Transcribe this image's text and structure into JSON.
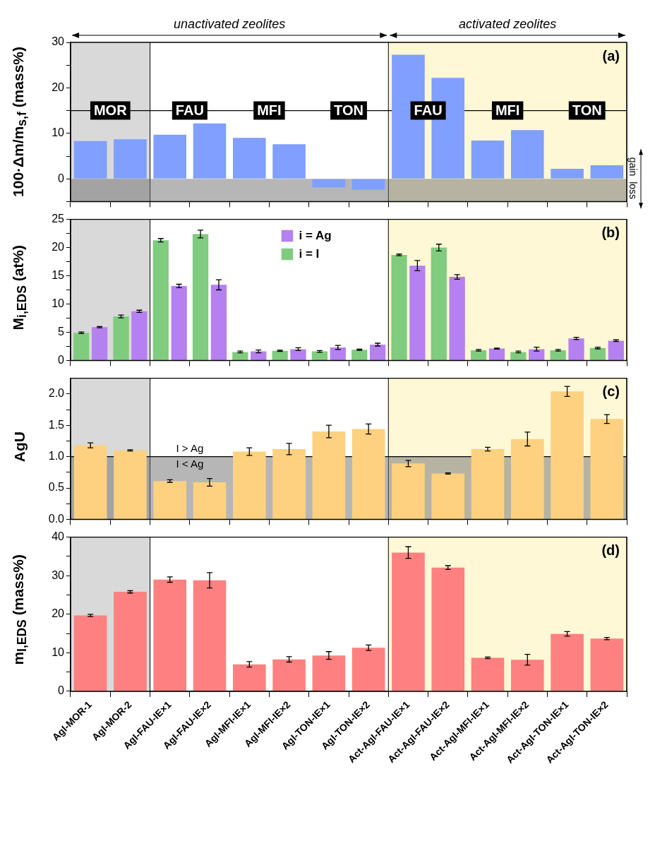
{
  "chart_data": [
    {
      "type": "bar",
      "ylabel": "100·Δm/m$_{s,f}$ (mass%)",
      "categories": [
        "AgI-MOR-1",
        "AgI-MOR-2",
        "AgI-FAU-IE×1",
        "AgI-FAU-IE×2",
        "AgI-MFI-IE×1",
        "AgI-MFI-IE×2",
        "AgI-TON-IE×1",
        "AgI-TON-IE×2",
        "Act-AgI-FAU-IE×1",
        "Act-AgI-FAU-IE×2",
        "Act-AgI-MFI-IE×1",
        "Act-AgI-MFI-IE×2",
        "Act-AgI-TON-IE×1",
        "Act-AgI-TON-IE×2"
      ],
      "values": [
        8.3,
        8.7,
        9.7,
        12.2,
        9.0,
        7.6,
        -1.9,
        -2.4,
        27.3,
        22.2,
        8.4,
        10.7,
        2.2,
        3.0
      ],
      "color": "#809fff",
      "ylim": [
        -5,
        30
      ],
      "yticks": [
        {
          "value": -5,
          "label": null
        },
        0,
        {
          "value": 5,
          "label": null
        },
        10,
        {
          "value": 15,
          "label": null
        },
        20,
        {
          "value": 25,
          "label": null
        },
        30
      ],
      "grid": false,
      "tick_labels": "y",
      "bands": [
        {
          "axis": "x",
          "from": "AgI-MOR-1",
          "to": "AgI-MOR-2",
          "color": "#d9d9d9"
        },
        {
          "axis": "x",
          "from": "Act-AgI-FAU-IE×1",
          "to": "Act-AgI-TON-IE×2",
          "color": "#fff8d6"
        },
        {
          "axis": "y",
          "from": -5,
          "to": 0,
          "color": "#6e6e6e"
        }
      ],
      "ref_lines": [
        {
          "axis": "y",
          "value": 15,
          "color": "#000000"
        }
      ],
      "annotations": [
        "MOR",
        "FAU",
        "MFI",
        "TON",
        "FAU",
        "MFI",
        "TON",
        "unactivated zeolites",
        "activated zeolites",
        "(a)",
        "gain",
        "loss"
      ]
    },
    {
      "type": "bar",
      "ylabel": "M$_{i,EDS}$ (at%)",
      "categories": [
        "AgI-MOR-1",
        "AgI-MOR-2",
        "AgI-FAU-IE×1",
        "AgI-FAU-IE×2",
        "AgI-MFI-IE×1",
        "AgI-MFI-IE×2",
        "AgI-TON-IE×1",
        "AgI-TON-IE×2",
        "Act-AgI-FAU-IE×1",
        "Act-AgI-FAU-IE×2",
        "Act-AgI-MFI-IE×1",
        "Act-AgI-MFI-IE×2",
        "Act-AgI-TON-IE×1",
        "Act-AgI-TON-IE×2"
      ],
      "series": [
        {
          "name": "i = I",
          "color": "#7fcc7f",
          "values": [
            4.9,
            7.8,
            21.3,
            22.4,
            1.5,
            1.7,
            1.6,
            1.9,
            18.7,
            20.0,
            1.8,
            1.5,
            1.8,
            2.2
          ],
          "errors": [
            0.15,
            0.25,
            0.3,
            0.7,
            0.15,
            0.1,
            0.15,
            0.1,
            0.15,
            0.6,
            0.15,
            0.15,
            0.15,
            0.15
          ]
        },
        {
          "name": "i = Ag",
          "color": "#b580f0",
          "values": [
            5.9,
            8.7,
            13.2,
            13.4,
            1.6,
            2.0,
            2.3,
            2.8,
            16.8,
            14.8,
            2.1,
            2.0,
            3.9,
            3.5
          ],
          "errors": [
            0.1,
            0.2,
            0.3,
            0.9,
            0.25,
            0.25,
            0.35,
            0.25,
            0.9,
            0.4,
            0.1,
            0.35,
            0.2,
            0.15
          ]
        }
      ],
      "ylim": [
        0,
        25
      ],
      "yticks": [
        0,
        {
          "value": 2.5,
          "label": null
        },
        5,
        {
          "value": 7.5,
          "label": null
        },
        10,
        {
          "value": 12.5,
          "label": null
        },
        15,
        {
          "value": 17.5,
          "label": null
        },
        20,
        {
          "value": 22.5,
          "label": null
        },
        25
      ],
      "grid": false,
      "tick_labels": "y",
      "legend": "top",
      "bands": [
        {
          "axis": "x",
          "from": "AgI-MOR-1",
          "to": "AgI-MOR-2",
          "color": "#d9d9d9"
        },
        {
          "axis": "x",
          "from": "Act-AgI-FAU-IE×1",
          "to": "Act-AgI-TON-IE×2",
          "color": "#fff8d6"
        }
      ],
      "annotations": [
        "(b)"
      ]
    },
    {
      "type": "bar",
      "ylabel": "AgU",
      "categories": [
        "AgI-MOR-1",
        "AgI-MOR-2",
        "AgI-FAU-IE×1",
        "AgI-FAU-IE×2",
        "AgI-MFI-IE×1",
        "AgI-MFI-IE×2",
        "AgI-TON-IE×1",
        "AgI-TON-IE×2",
        "Act-AgI-FAU-IE×1",
        "Act-AgI-FAU-IE×2",
        "Act-AgI-MFI-IE×1",
        "Act-AgI-MFI-IE×2",
        "Act-AgI-TON-IE×1",
        "Act-AgI-TON-IE×2"
      ],
      "values": [
        1.18,
        1.1,
        0.61,
        0.59,
        1.08,
        1.12,
        1.4,
        1.44,
        0.89,
        0.73,
        1.12,
        1.28,
        2.04,
        1.6
      ],
      "errors": [
        0.04,
        0.01,
        0.02,
        0.06,
        0.06,
        0.09,
        0.1,
        0.08,
        0.05,
        0.01,
        0.03,
        0.11,
        0.08,
        0.07
      ],
      "color": "#fdd17f",
      "ylim": [
        0,
        2.25
      ],
      "yticks": [
        {
          "value": 0,
          "label": "0.0"
        },
        {
          "value": 0.25,
          "label": null
        },
        {
          "value": 0.5,
          "label": "0.5"
        },
        {
          "value": 0.75,
          "label": null
        },
        {
          "value": 1,
          "label": "1.0"
        },
        {
          "value": 1.25,
          "label": null
        },
        {
          "value": 1.5,
          "label": "1.5"
        },
        {
          "value": 1.75,
          "label": null
        },
        {
          "value": 2,
          "label": "2.0"
        }
      ],
      "grid": false,
      "tick_labels": "y",
      "bands": [
        {
          "axis": "x",
          "from": "AgI-MOR-1",
          "to": "AgI-MOR-2",
          "color": "#d9d9d9"
        },
        {
          "axis": "x",
          "from": "Act-AgI-FAU-IE×1",
          "to": "Act-AgI-TON-IE×2",
          "color": "#fff8d6"
        },
        {
          "axis": "y",
          "from": 0,
          "to": 1,
          "color": "#6e6e6e"
        }
      ],
      "ref_lines": [
        {
          "axis": "y",
          "value": 1,
          "color": "#000000"
        }
      ],
      "annotations": [
        "I > Ag",
        "I < Ag",
        "(c)"
      ]
    },
    {
      "type": "bar",
      "ylabel": "m$_{I,EDS}$ (mass%)",
      "categories": [
        "AgI-MOR-1",
        "AgI-MOR-2",
        "AgI-FAU-IE×1",
        "AgI-FAU-IE×2",
        "AgI-MFI-IE×1",
        "AgI-MFI-IE×2",
        "AgI-TON-IE×1",
        "AgI-TON-IE×2",
        "Act-AgI-FAU-IE×1",
        "Act-AgI-FAU-IE×2",
        "Act-AgI-MFI-IE×1",
        "Act-AgI-MFI-IE×2",
        "Act-AgI-TON-IE×1",
        "Act-AgI-TON-IE×2"
      ],
      "values": [
        19.7,
        25.8,
        29.0,
        28.8,
        7.0,
        8.3,
        9.3,
        11.3,
        36.0,
        32.1,
        8.7,
        8.2,
        14.9,
        13.7
      ],
      "errors": [
        0.3,
        0.3,
        0.7,
        2.0,
        0.7,
        0.7,
        1.0,
        0.7,
        1.5,
        0.5,
        0.2,
        1.4,
        0.6,
        0.3
      ],
      "color": "#ff8080",
      "ylim": [
        0,
        40
      ],
      "yticks": [
        0,
        {
          "value": 5,
          "label": null
        },
        10,
        {
          "value": 15,
          "label": null
        },
        20,
        {
          "value": 25,
          "label": null
        },
        30,
        {
          "value": 35,
          "label": null
        },
        40
      ],
      "grid": false,
      "bands": [
        {
          "axis": "x",
          "from": "AgI-MOR-1",
          "to": "AgI-MOR-2",
          "color": "#d9d9d9"
        },
        {
          "axis": "x",
          "from": "Act-AgI-FAU-IE×1",
          "to": "Act-AgI-TON-IE×2",
          "color": "#fff8d6"
        }
      ],
      "annotations": [
        "(d)"
      ]
    }
  ]
}
